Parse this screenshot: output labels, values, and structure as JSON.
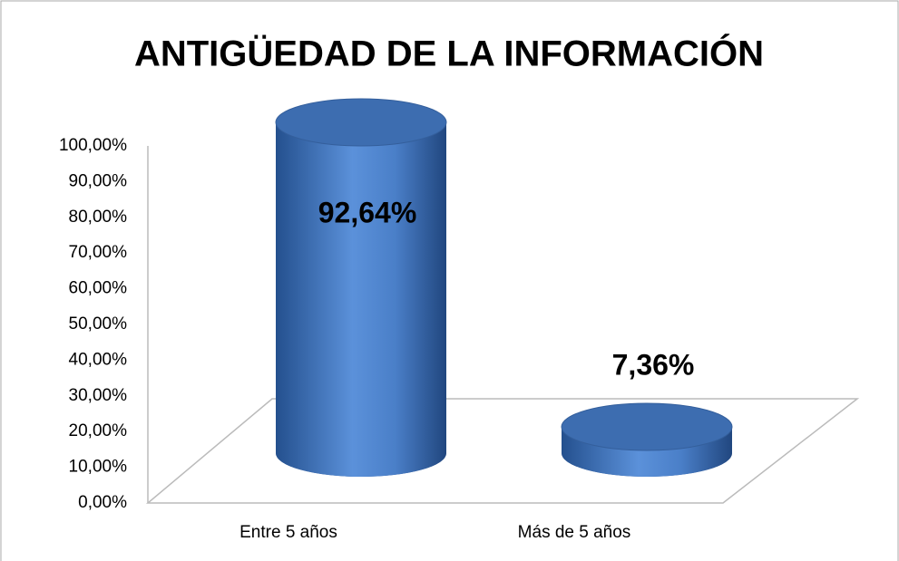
{
  "chart_data": {
    "type": "bar3d",
    "title": "ANTIGÜEDAD DE LA INFORMACIÓN",
    "categories": [
      "Entre 5 años",
      "Más de 5 años"
    ],
    "values": [
      92.64,
      7.36
    ],
    "value_labels": [
      "92,64%",
      "7,36%"
    ],
    "color": "#4a7cc4",
    "ylim": [
      0,
      100
    ],
    "yticks": [
      {
        "value": 0,
        "label": "0,00%"
      },
      {
        "value": 10,
        "label": "10,00%"
      },
      {
        "value": 20,
        "label": "20,00%"
      },
      {
        "value": 30,
        "label": "30,00%"
      },
      {
        "value": 40,
        "label": "40,00%"
      },
      {
        "value": 50,
        "label": "50,00%"
      },
      {
        "value": 60,
        "label": "60,00%"
      },
      {
        "value": 70,
        "label": "70,00%"
      },
      {
        "value": 80,
        "label": "80,00%"
      },
      {
        "value": 90,
        "label": "90,00%"
      },
      {
        "value": 100,
        "label": "100,00%"
      }
    ],
    "grid": false
  }
}
